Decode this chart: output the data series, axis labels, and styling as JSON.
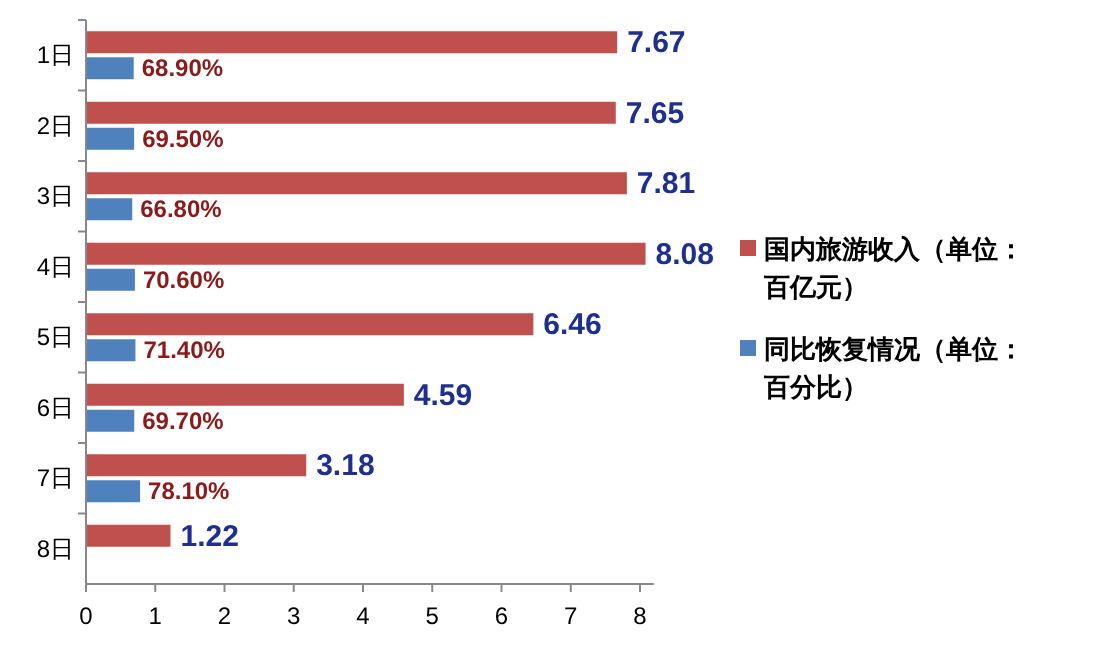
{
  "chart_data": {
    "type": "bar",
    "orientation": "horizontal",
    "categories": [
      "1日",
      "2日",
      "3日",
      "4日",
      "5日",
      "6日",
      "7日",
      "8日"
    ],
    "xlim": [
      0,
      8.2
    ],
    "xticks": [
      0,
      1,
      2,
      3,
      4,
      5,
      6,
      7,
      8
    ],
    "legend": "right",
    "series": [
      {
        "name": "国内旅游收入（单位：百亿元）",
        "color": "#c0504d",
        "values": [
          7.67,
          7.65,
          7.81,
          8.08,
          6.46,
          4.59,
          3.18,
          1.22
        ],
        "value_labels": [
          "7.67",
          "7.65",
          "7.81",
          "8.08",
          "6.46",
          "4.59",
          "3.18",
          "1.22"
        ]
      },
      {
        "name": "同比恢复情况（单位：百分比）",
        "color": "#4f81bd",
        "values": [
          0.689,
          0.695,
          0.668,
          0.706,
          0.714,
          0.697,
          0.781,
          null
        ],
        "value_labels": [
          "68.90%",
          "69.50%",
          "66.80%",
          "70.60%",
          "71.40%",
          "69.70%",
          "78.10%",
          null
        ]
      }
    ]
  }
}
